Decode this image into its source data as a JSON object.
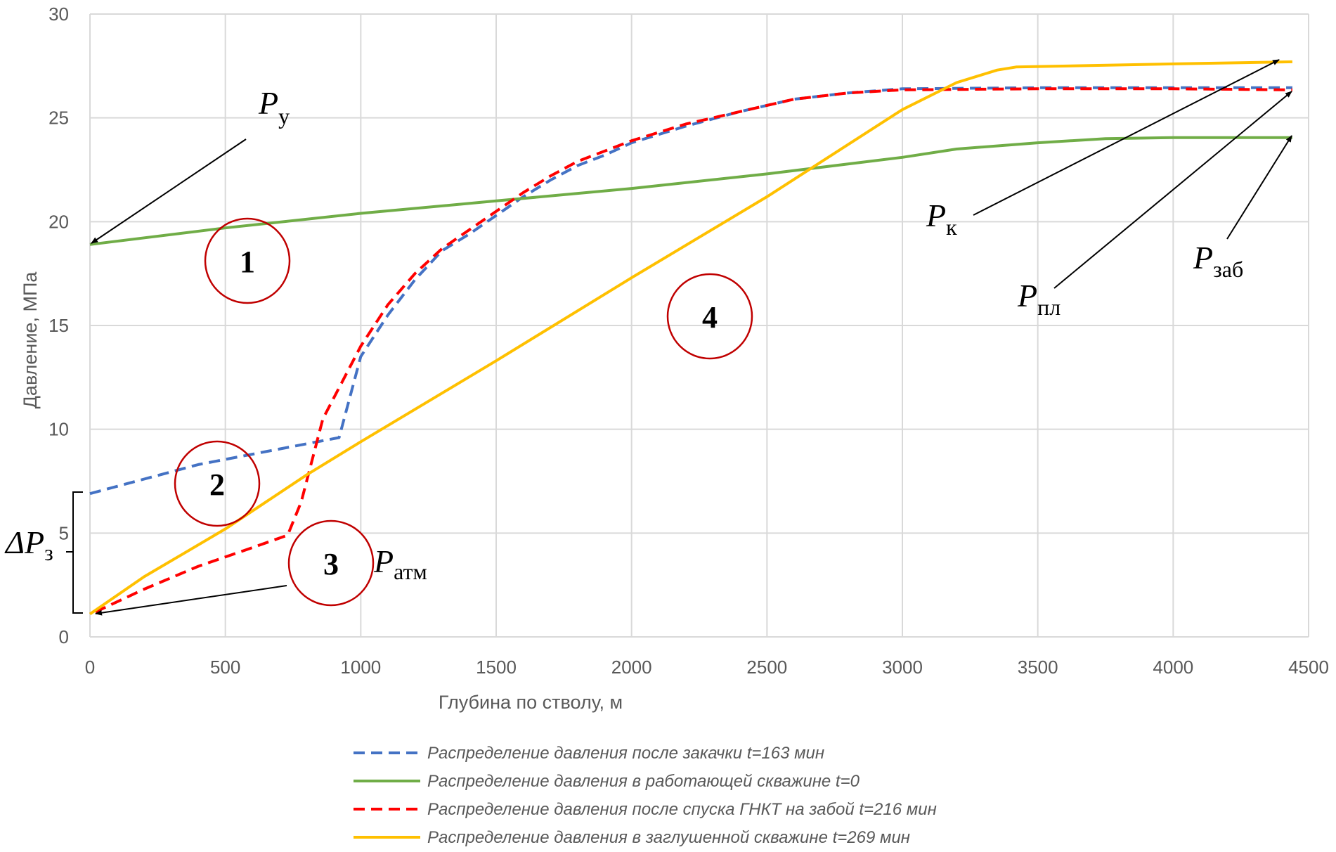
{
  "chart_data": {
    "type": "line",
    "xlabel": "Глубина по стволу, м",
    "ylabel": "Давление, МПа",
    "xlim": [
      0,
      4500
    ],
    "ylim": [
      0,
      30
    ],
    "xticks": [
      0,
      500,
      1000,
      1500,
      2000,
      2500,
      3000,
      3500,
      4000,
      4500
    ],
    "yticks": [
      0,
      5,
      10,
      15,
      20,
      25,
      30
    ],
    "grid": true,
    "legend_position": "bottom",
    "series": [
      {
        "name": "Распределение давления после закачки t=163 мин",
        "color": "#4472C4",
        "dash": true,
        "points": [
          [
            0,
            6.9
          ],
          [
            200,
            7.6
          ],
          [
            400,
            8.3
          ],
          [
            600,
            8.8
          ],
          [
            800,
            9.3
          ],
          [
            920,
            9.6
          ],
          [
            1000,
            13.5
          ],
          [
            1100,
            15.5
          ],
          [
            1200,
            17.2
          ],
          [
            1300,
            18.6
          ],
          [
            1400,
            19.4
          ],
          [
            1500,
            20.3
          ],
          [
            1600,
            21.2
          ],
          [
            1700,
            22.0
          ],
          [
            1800,
            22.7
          ],
          [
            1900,
            23.2
          ],
          [
            2000,
            23.8
          ],
          [
            2200,
            24.6
          ],
          [
            2400,
            25.3
          ],
          [
            2600,
            25.9
          ],
          [
            2800,
            26.2
          ],
          [
            3000,
            26.4
          ],
          [
            3500,
            26.45
          ],
          [
            4000,
            26.45
          ],
          [
            4440,
            26.45
          ]
        ]
      },
      {
        "name": "Распределение давления в работающей скважине t=0",
        "color": "#70AD47",
        "dash": false,
        "points": [
          [
            0,
            18.9
          ],
          [
            500,
            19.7
          ],
          [
            1000,
            20.4
          ],
          [
            1500,
            21.0
          ],
          [
            2000,
            21.6
          ],
          [
            2500,
            22.3
          ],
          [
            3000,
            23.1
          ],
          [
            3200,
            23.5
          ],
          [
            3500,
            23.8
          ],
          [
            3750,
            24.0
          ],
          [
            4000,
            24.05
          ],
          [
            4440,
            24.05
          ]
        ]
      },
      {
        "name": "Распределение давления после спуска ГНКТ на забой t=216 мин",
        "color": "#FF0000",
        "dash": true,
        "points": [
          [
            20,
            1.2
          ],
          [
            200,
            2.3
          ],
          [
            400,
            3.4
          ],
          [
            600,
            4.3
          ],
          [
            730,
            4.9
          ],
          [
            780,
            6.5
          ],
          [
            860,
            10.5
          ],
          [
            940,
            12.5
          ],
          [
            1000,
            14.0
          ],
          [
            1100,
            16.0
          ],
          [
            1200,
            17.5
          ],
          [
            1300,
            18.7
          ],
          [
            1400,
            19.6
          ],
          [
            1500,
            20.5
          ],
          [
            1600,
            21.4
          ],
          [
            1700,
            22.2
          ],
          [
            1800,
            22.9
          ],
          [
            2000,
            23.9
          ],
          [
            2200,
            24.7
          ],
          [
            2400,
            25.3
          ],
          [
            2600,
            25.9
          ],
          [
            2800,
            26.2
          ],
          [
            3000,
            26.35
          ],
          [
            3500,
            26.4
          ],
          [
            4000,
            26.4
          ],
          [
            4440,
            26.35
          ]
        ]
      },
      {
        "name": "Распределение давления в заглушенной скважине t=269 мин",
        "color": "#FFC000",
        "dash": false,
        "points": [
          [
            0,
            1.1
          ],
          [
            200,
            2.9
          ],
          [
            500,
            5.2
          ],
          [
            800,
            7.8
          ],
          [
            1000,
            9.4
          ],
          [
            1500,
            13.3
          ],
          [
            2000,
            17.3
          ],
          [
            2500,
            21.2
          ],
          [
            3000,
            25.4
          ],
          [
            3200,
            26.7
          ],
          [
            3350,
            27.3
          ],
          [
            3420,
            27.45
          ],
          [
            4000,
            27.6
          ],
          [
            4440,
            27.7
          ]
        ]
      }
    ],
    "annotations": {
      "p_u": {
        "main": "P",
        "sub": "у"
      },
      "p_k": {
        "main": "P",
        "sub": "к"
      },
      "p_pl": {
        "main": "P",
        "sub": "пл"
      },
      "p_zab": {
        "main": "P",
        "sub": "заб"
      },
      "p_atm": {
        "main": "P",
        "sub": "атм"
      },
      "dp_z": {
        "main": "ΔP",
        "sub": "з"
      },
      "circles": [
        "1",
        "2",
        "3",
        "4"
      ]
    }
  }
}
